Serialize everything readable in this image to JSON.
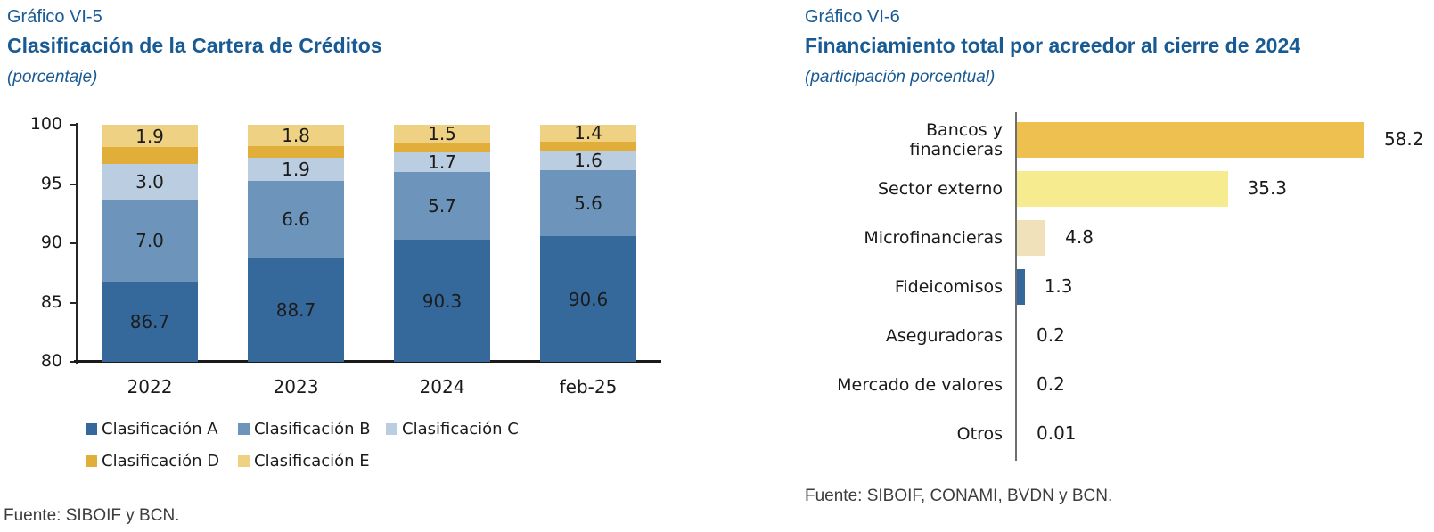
{
  "colors": {
    "title_blue": "#185A93",
    "source_gray": "#3d3d3d",
    "clasificacion_a": "#35699C",
    "clasificacion_b": "#6D95BB",
    "clasificacion_c": "#BBCDE0",
    "clasificacion_d": "#E2AE3A",
    "clasificacion_e": "#EFD184",
    "bancos_gold": "#EDC050",
    "sector_yellow": "#F6EC8F",
    "micro_beige": "#F0E1BA",
    "fidei_blue": "#35699C"
  },
  "left_chart": {
    "label": "Gráfico VI-5",
    "title": "Clasificación de la Cartera de Créditos",
    "subtitle": "(porcentaje)",
    "source": "Fuente: SIBOIF y BCN."
  },
  "right_chart": {
    "label": "Gráfico VI-6",
    "title": "Financiamiento total por acreedor al cierre de 2024",
    "subtitle": "(participación porcentual)",
    "source": "Fuente: SIBOIF, CONAMI, BVDN y BCN."
  },
  "chart_data": [
    {
      "type": "bar",
      "variant": "stacked-vertical",
      "title": "Clasificación de la Cartera de Créditos",
      "subtitle": "(porcentaje)",
      "categories": [
        "2022",
        "2023",
        "2024",
        "feb-25"
      ],
      "series": [
        {
          "name": "Clasificación A",
          "color": "#35699C",
          "values": [
            86.7,
            88.7,
            90.3,
            90.6
          ],
          "labeled": true
        },
        {
          "name": "Clasificación B",
          "color": "#6D95BB",
          "values": [
            7.0,
            6.6,
            5.7,
            5.6
          ],
          "labeled": true
        },
        {
          "name": "Clasificación C",
          "color": "#BBCDE0",
          "values": [
            3.0,
            1.9,
            1.7,
            1.6
          ],
          "labeled": true
        },
        {
          "name": "Clasificación D",
          "color": "#E2AE3A",
          "values": [
            1.4,
            1.0,
            0.8,
            0.8
          ],
          "labeled": false
        },
        {
          "name": "Clasificación E",
          "color": "#EFD184",
          "values": [
            1.9,
            1.8,
            1.5,
            1.4
          ],
          "labeled": true
        }
      ],
      "ylim": [
        80,
        100
      ],
      "yticks": [
        100,
        95,
        90,
        85,
        80
      ],
      "grid": false,
      "legend_position": "bottom"
    },
    {
      "type": "bar",
      "variant": "horizontal",
      "title": "Financiamiento total por acreedor al cierre de 2024",
      "subtitle": "(participación porcentual)",
      "categories": [
        "Bancos y financieras",
        "Sector externo",
        "Microfinancieras",
        "Fideicomisos",
        "Aseguradoras",
        "Mercado de valores",
        "Otros"
      ],
      "label_lines": [
        [
          "Bancos y",
          "financieras"
        ],
        [
          "Sector externo"
        ],
        [
          "Microfinancieras"
        ],
        [
          "Fideicomisos"
        ],
        [
          "Aseguradoras"
        ],
        [
          "Mercado de valores"
        ],
        [
          "Otros"
        ]
      ],
      "values": [
        58.2,
        35.3,
        4.8,
        1.3,
        0.2,
        0.2,
        0.01
      ],
      "value_labels": [
        "58.2",
        "35.3",
        "4.8",
        "1.3",
        "0.2",
        "0.2",
        "0.01"
      ],
      "bar_colors": [
        "#EDC050",
        "#F6EC8F",
        "#F0E1BA",
        "#35699C",
        "#35699C",
        "#35699C",
        "#35699C"
      ],
      "xlim": [
        0,
        62
      ],
      "grid": false,
      "legend_position": "none"
    }
  ]
}
